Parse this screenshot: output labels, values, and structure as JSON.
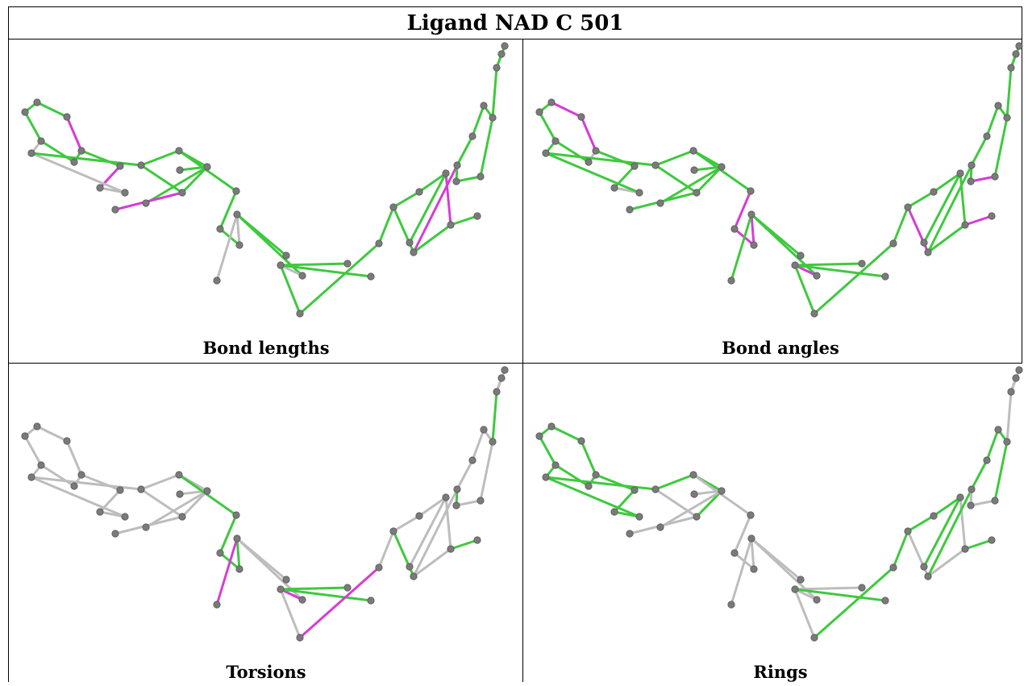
{
  "title": "Ligand NAD C 501",
  "panels": [
    {
      "caption": "Bond lengths"
    },
    {
      "caption": "Bond angles"
    },
    {
      "caption": "Torsions"
    },
    {
      "caption": "Rings"
    }
  ],
  "colors": {
    "good": "#3ec93e",
    "outlier": "#d63cd6",
    "neutral": "#bdbdbd",
    "atom": "#7a7a7a"
  },
  "molecule": {
    "bonds": [
      [
        "a1",
        "a2"
      ],
      [
        "a2",
        "a3"
      ],
      [
        "a3",
        "a4"
      ],
      [
        "a4",
        "a5"
      ],
      [
        "a5",
        "a6"
      ],
      [
        "a6",
        "a1"
      ],
      [
        "a6",
        "a7"
      ],
      [
        "a4",
        "a9"
      ],
      [
        "a9",
        "a8"
      ],
      [
        "a8",
        "a10"
      ],
      [
        "a10",
        "a7"
      ],
      [
        "a7",
        "a11"
      ],
      [
        "a11",
        "a12"
      ],
      [
        "a12",
        "a13"
      ],
      [
        "a13",
        "a14"
      ],
      [
        "a14",
        "a11"
      ],
      [
        "a13",
        "a15"
      ],
      [
        "a13",
        "a16"
      ],
      [
        "a14",
        "a17"
      ],
      [
        "a12",
        "a18"
      ],
      [
        "a18",
        "a19"
      ],
      [
        "a19",
        "a20"
      ],
      [
        "a20",
        "a21"
      ],
      [
        "a21",
        "a22"
      ],
      [
        "a21",
        "a23"
      ],
      [
        "a21",
        "a24"
      ],
      [
        "a24",
        "a25"
      ],
      [
        "a25",
        "a26"
      ],
      [
        "a25",
        "a27"
      ],
      [
        "a25",
        "a28"
      ],
      [
        "a26",
        "a29"
      ],
      [
        "a29",
        "a30"
      ],
      [
        "a30",
        "a31"
      ],
      [
        "a31",
        "a32"
      ],
      [
        "a32",
        "a33"
      ],
      [
        "a33",
        "a34"
      ],
      [
        "a34",
        "a30"
      ],
      [
        "a33",
        "a35"
      ],
      [
        "a32",
        "a36"
      ],
      [
        "a34",
        "a37"
      ],
      [
        "a37",
        "a38"
      ],
      [
        "a38",
        "a39"
      ],
      [
        "a39",
        "a40"
      ],
      [
        "a40",
        "a41"
      ],
      [
        "a41",
        "a42"
      ],
      [
        "a42",
        "a37"
      ],
      [
        "a40",
        "a43"
      ],
      [
        "a43",
        "a44"
      ],
      [
        "a43",
        "a45"
      ]
    ],
    "bond_status": {
      "lengths": [
        "good",
        "good",
        "outlier",
        "good",
        "good",
        "good",
        "neutral",
        "good",
        "outlier",
        "neutral",
        "neutral",
        "good",
        "good",
        "good",
        "good",
        "good",
        "good",
        "good",
        "outlier",
        "good",
        "good",
        "good",
        "neutral",
        "neutral",
        "good",
        "good",
        "neutral",
        "good",
        "good",
        "good",
        "good",
        "good",
        "good",
        "good",
        "outlier",
        "good",
        "good",
        "good",
        "good",
        "outlier",
        "good",
        "good",
        "good",
        "good",
        "good",
        "good",
        "good",
        "good",
        "good"
      ],
      "angles": [
        "good",
        "outlier",
        "outlier",
        "neutral",
        "good",
        "good",
        "good",
        "good",
        "good",
        "neutral",
        "good",
        "good",
        "good",
        "good",
        "good",
        "good",
        "good",
        "good",
        "good",
        "good",
        "outlier",
        "outlier",
        "outlier",
        "good",
        "good",
        "good",
        "outlier",
        "good",
        "good",
        "good",
        "good",
        "good",
        "good",
        "good",
        "good",
        "good",
        "outlier",
        "outlier",
        "good",
        "good",
        "good",
        "good",
        "good",
        "good",
        "outlier",
        "good",
        "good",
        "good",
        "good"
      ],
      "torsions": [
        "neutral",
        "neutral",
        "neutral",
        "neutral",
        "neutral",
        "neutral",
        "neutral",
        "neutral",
        "neutral",
        "neutral",
        "neutral",
        "neutral",
        "neutral",
        "neutral",
        "neutral",
        "neutral",
        "neutral",
        "neutral",
        "neutral",
        "good",
        "good",
        "good",
        "good",
        "outlier",
        "neutral",
        "neutral",
        "outlier",
        "neutral",
        "good",
        "good",
        "outlier",
        "neutral",
        "neutral",
        "neutral",
        "neutral",
        "neutral",
        "good",
        "good",
        "neutral",
        "neutral",
        "neutral",
        "neutral",
        "neutral",
        "neutral",
        "neutral",
        "good",
        "good",
        "neutral",
        "neutral"
      ],
      "rings": [
        "good",
        "good",
        "good",
        "good",
        "good",
        "good",
        "good",
        "good",
        "good",
        "good",
        "good",
        "good",
        "good",
        "good",
        "good",
        "neutral",
        "neutral",
        "neutral",
        "neutral",
        "neutral",
        "neutral",
        "neutral",
        "neutral",
        "neutral",
        "neutral",
        "neutral",
        "neutral",
        "neutral",
        "neutral",
        "good",
        "good",
        "good",
        "good",
        "good",
        "neutral",
        "neutral",
        "neutral",
        "good",
        "good",
        "good",
        "good",
        "good",
        "good",
        "good",
        "neutral",
        "neutral",
        "neutral",
        "neutral",
        "neutral"
      ]
    }
  }
}
